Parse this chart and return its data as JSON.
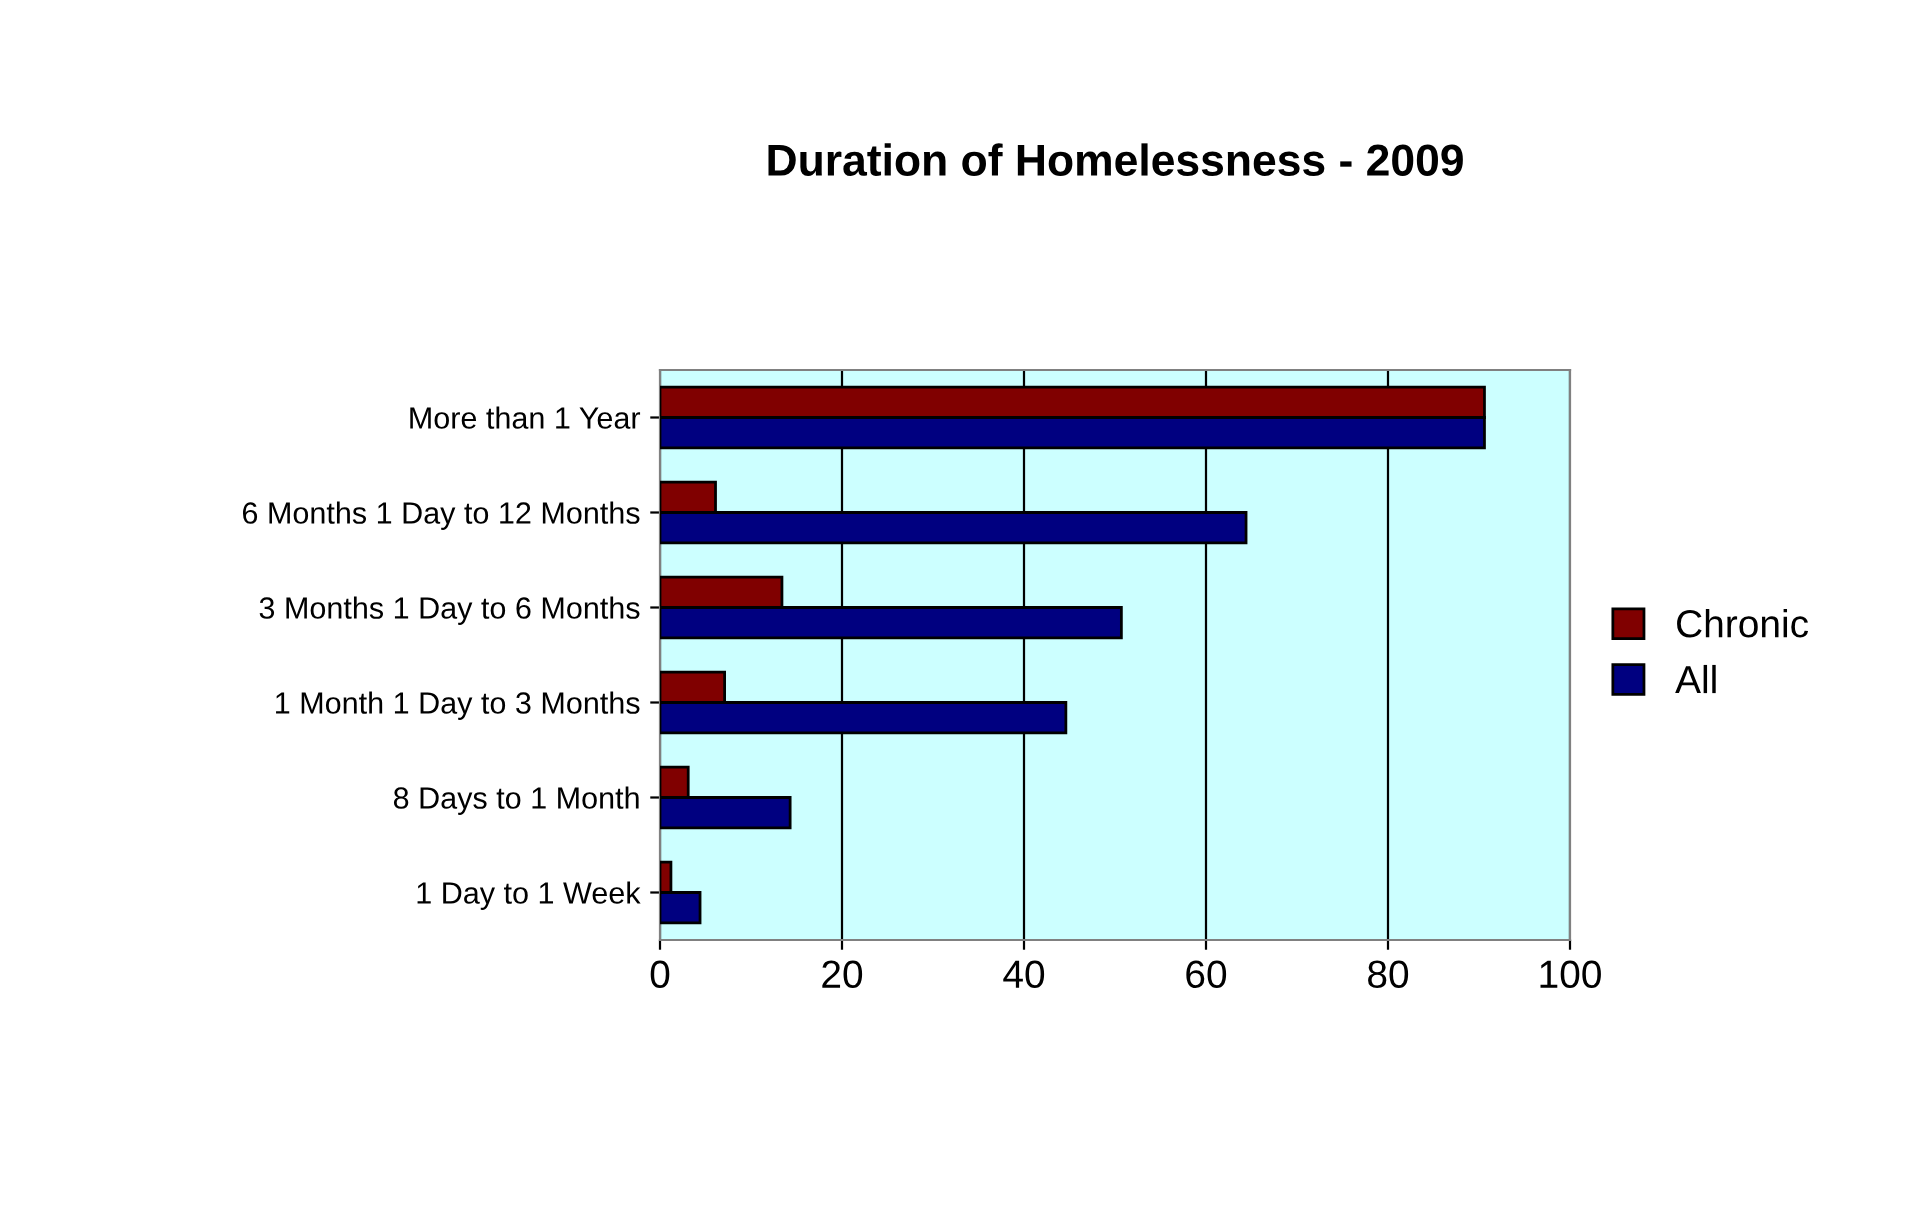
{
  "chart_data": {
    "type": "bar",
    "orientation": "horizontal",
    "title": "Duration of Homelessness - 2009",
    "categories": [
      "More than 1 Year",
      "6 Months 1 Day to 12 Months",
      "3 Months 1 Day to 6 Months",
      "1 Month 1 Day to 3 Months",
      "8 Days to 1 Month",
      "1 Day to 1 Week"
    ],
    "series": [
      {
        "name": "Chronic",
        "color": "#800000",
        "values": [
          90.6,
          6.1,
          13.4,
          7.1,
          3.1,
          1.2
        ]
      },
      {
        "name": "All",
        "color": "#000080",
        "values": [
          90.6,
          64.4,
          50.7,
          44.6,
          14.3,
          4.4
        ]
      }
    ],
    "xlim": [
      0,
      100
    ],
    "xticks": [
      0,
      20,
      40,
      60,
      80,
      100
    ],
    "grid": "x",
    "legend": "right"
  }
}
